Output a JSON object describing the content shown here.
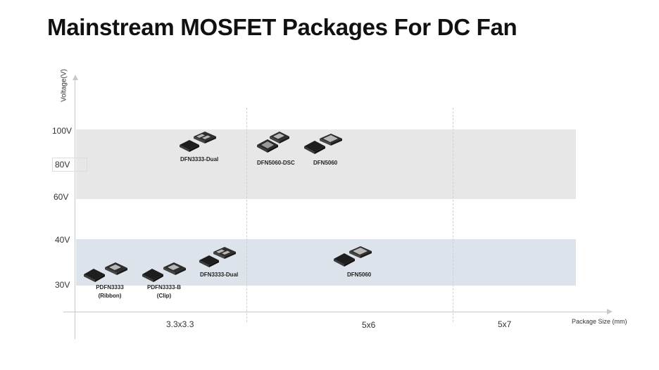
{
  "title": "Mainstream MOSFET Packages For DC Fan",
  "diagram": {
    "y_axis_title": "Voltage(V)",
    "y_ticks": [
      "100V",
      "80V",
      "60V",
      "40V",
      "30V"
    ],
    "x_axis_title": "Package Size (mm)",
    "x_categories": [
      "3.3x3.3",
      "5x6",
      "5x7"
    ],
    "bands": [
      {
        "range": "60V-100V",
        "color": "#e7e7e7"
      },
      {
        "range": "30V-40V",
        "color": "#dde3ea"
      }
    ],
    "packages": [
      {
        "label": "DFN3333-Dual",
        "size": "3.3x3.3",
        "voltage": "60V-100V"
      },
      {
        "label": "DFN5060-DSC",
        "size": "5x6",
        "voltage": "60V-100V"
      },
      {
        "label": "DFN5060",
        "size": "5x6",
        "voltage": "60V-100V"
      },
      {
        "label": "PDFN3333",
        "sublabel": "(Ribbon)",
        "size": "3.3x3.3",
        "voltage": "30V-40V"
      },
      {
        "label": "PDFN3333-B",
        "sublabel": "(Clip)",
        "size": "3.3x3.3",
        "voltage": "30V-40V"
      },
      {
        "label": "DFN3333-Dual",
        "size": "3.3x3.3",
        "voltage": "30V-40V"
      },
      {
        "label": "DFN5060",
        "size": "5x6",
        "voltage": "30V-40V"
      }
    ],
    "colors": {
      "chip_body": "#2b2b2b",
      "chip_pad": "#b8b8b8"
    }
  }
}
